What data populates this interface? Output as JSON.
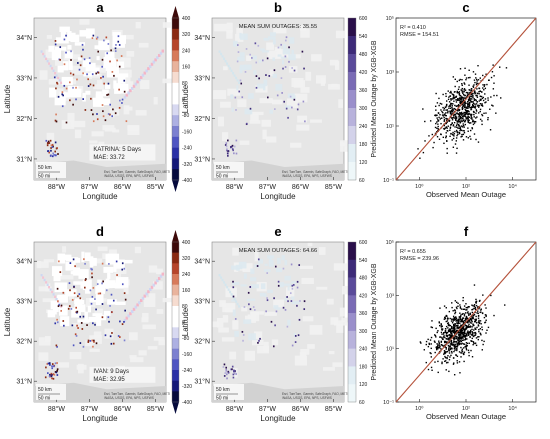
{
  "panels": {
    "a": {
      "letter": "a",
      "event": "KATRINA: 5 Days",
      "mae": "MAE: 33.72"
    },
    "b": {
      "letter": "b",
      "title": "MEAN SUM OUTAGES: 35.55"
    },
    "c": {
      "letter": "c",
      "r2": "R² = 0.410",
      "rmse": "RMSE = 154.51"
    },
    "d": {
      "letter": "d",
      "event": "IVAN: 9 Days",
      "mae": "MAE: 32.95"
    },
    "e": {
      "letter": "e",
      "title": "MEAN SUM OUTAGES: 64.66"
    },
    "f": {
      "letter": "f",
      "r2": "R² = 0.655",
      "rmse": "RMSE = 239.96"
    }
  },
  "map": {
    "lat_ticks": [
      "34°N",
      "33°N",
      "32°N",
      "31°N"
    ],
    "lon_ticks": [
      "88°W",
      "87°W",
      "86°W",
      "85°W"
    ],
    "xlabel": "Longitude",
    "ylabel": "Latitude",
    "scale_km": "50 km",
    "scale_mi": "50 mi",
    "attribution": "Esri, TomTom, Garmin, SafeGraph, FAO, METI/NASA, USGS, EPA, NPS, USFWS"
  },
  "colorbars": {
    "diverging": {
      "ticks": [
        "400",
        "320",
        "240",
        "160",
        "80",
        "0",
        "-80",
        "-160",
        "-240",
        "-320",
        "-400"
      ],
      "colors": [
        "#3d0a0a",
        "#8a2a12",
        "#b6452a",
        "#d77a5a",
        "#e9b39c",
        "#f6dcd0",
        "#ffffff",
        "#ffffff",
        "#d8d9f1",
        "#adb0e2",
        "#7c80d0",
        "#4f55c2",
        "#2a30a6",
        "#141878",
        "#050a3c"
      ]
    },
    "sequential": {
      "ticks": [
        "600",
        "540",
        "480",
        "420",
        "360",
        "300",
        "240",
        "180",
        "120",
        "60"
      ],
      "colors": [
        "#2a0f4a",
        "#3d2a78",
        "#5a4a9a",
        "#7a6bb5",
        "#9a8fcb",
        "#b8b2dc",
        "#d3d2ea",
        "#e2eef4",
        "#eef7f9"
      ]
    }
  },
  "chart_data": [
    {
      "panel": "c",
      "type": "scatter",
      "xlabel": "Observed Mean Outage",
      "ylabel": "Predicted Mean Outage by XGB-XGB",
      "x_scale": "log",
      "y_scale": "log",
      "xlim": [
        0.1,
        100000
      ],
      "ylim": [
        0.1,
        100000
      ],
      "x_ticks": [
        "10⁰",
        "10²",
        "10⁴"
      ],
      "y_ticks": [
        "10⁻¹",
        "10¹",
        "10³",
        "10⁵"
      ],
      "reference_line": "y = x",
      "cloud": {
        "x_range": [
          1,
          1000
        ],
        "y_center": "approximately 10–100",
        "n_points": 700
      }
    },
    {
      "panel": "f",
      "type": "scatter",
      "xlabel": "Observed Mean Outage",
      "ylabel": "Predicted Mean Outage by XGB-XGB",
      "x_scale": "log",
      "y_scale": "log",
      "xlim": [
        0.1,
        100000
      ],
      "ylim": [
        0.1,
        100000
      ],
      "x_ticks": [
        "10⁰",
        "10²",
        "10⁴"
      ],
      "y_ticks": [
        "10⁻¹",
        "10¹",
        "10³",
        "10⁵"
      ],
      "reference_line": "y = x",
      "cloud": {
        "x_range": [
          1,
          1000
        ],
        "y_center": "approximately 10–100",
        "n_points": 800
      }
    }
  ],
  "colors": {
    "line": "#b5523b",
    "map_bg": "#e6e6e6",
    "land_patch": "#ffffff",
    "point": "#000000"
  }
}
